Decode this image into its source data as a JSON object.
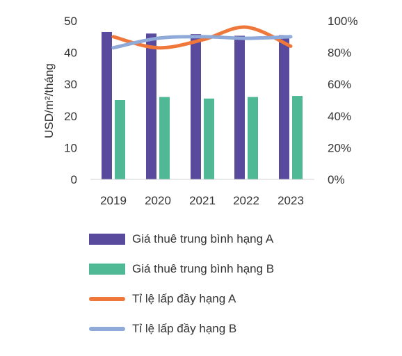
{
  "chart_data": {
    "type": "bar",
    "categories": [
      "2019",
      "2020",
      "2021",
      "2022",
      "2023"
    ],
    "series": [
      {
        "name": "Giá thuê trung bình hạng A",
        "kind": "bar",
        "axis": "left",
        "color": "#5a4a9e",
        "values": [
          46.5,
          46,
          45.8,
          45.3,
          45.5
        ]
      },
      {
        "name": "Giá thuê trung bình hạng B",
        "kind": "bar",
        "axis": "left",
        "color": "#4fb996",
        "values": [
          25,
          26,
          25.5,
          26,
          26.3
        ]
      },
      {
        "name": "Tỉ lệ lấp đầy hạng A",
        "kind": "line",
        "axis": "right",
        "color": "#f0773a",
        "values": [
          90,
          83,
          88,
          96,
          84
        ]
      },
      {
        "name": "Tỉ lệ lấp đầy hạng B",
        "kind": "line",
        "axis": "right",
        "color": "#8fa9d8",
        "values": [
          83,
          89,
          90,
          89,
          90
        ]
      }
    ],
    "ylabel": "USD/m²/tháng",
    "ylim": [
      0,
      50
    ],
    "yticks": [
      "0",
      "10",
      "20",
      "30",
      "40",
      "50"
    ],
    "y2lim": [
      0,
      100
    ],
    "y2ticks": [
      "0%",
      "20%",
      "40%",
      "60%",
      "80%",
      "100%"
    ],
    "grid": false,
    "legend": "bottom"
  }
}
